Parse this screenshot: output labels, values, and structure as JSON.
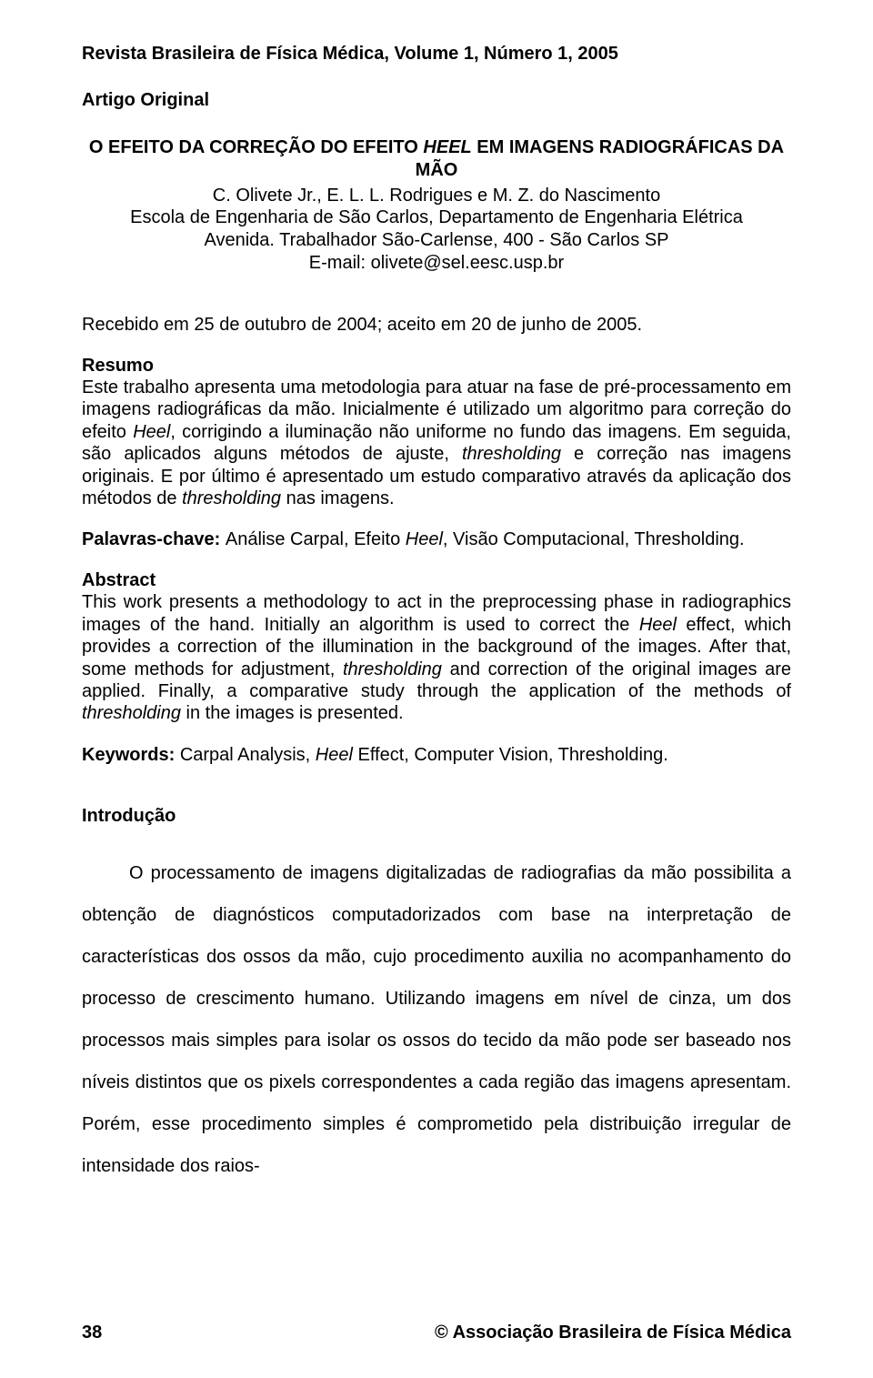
{
  "journal_header": "Revista Brasileira de Física Médica, Volume 1, Número 1, 2005",
  "article_type": "Artigo Original",
  "title": {
    "pre": "O EFEITO DA CORREÇÃO DO EFEITO ",
    "italic": "HEEL",
    "post": " EM IMAGENS RADIOGRÁFICAS DA",
    "line2": "MÃO"
  },
  "authors": "C. Olivete Jr., E. L. L. Rodrigues e M. Z. do Nascimento",
  "affiliation": {
    "l1": "Escola de Engenharia de São Carlos, Departamento de Engenharia Elétrica",
    "l2": "Avenida. Trabalhador São-Carlense, 400 - São Carlos SP",
    "l3": "E-mail: olivete@sel.eesc.usp.br"
  },
  "received": "Recebido em 25 de outubro de 2004; aceito em 20 de junho de 2005.",
  "resumo": {
    "head": "Resumo",
    "p1a": "Este trabalho apresenta uma metodologia para atuar na fase de pré-processamento em imagens radiográficas da mão. Inicialmente é utilizado um algoritmo para correção do efeito ",
    "p1b_it": "Heel",
    "p1c": ", corrigindo a iluminação não uniforme no fundo das imagens. Em seguida, são aplicados alguns métodos de ajuste, ",
    "p1d_it": "thresholding",
    "p1e": " e correção nas imagens originais. E por último é apresentado um estudo comparativo através da aplicação dos métodos de ",
    "p1f_it": "thresholding",
    "p1g": " nas imagens."
  },
  "palavras": {
    "label": "Palavras-chave: ",
    "a": "Análise Carpal, Efeito ",
    "b_it": "Heel",
    "c": ", Visão Computacional, Thresholding."
  },
  "abstract": {
    "head": "Abstract",
    "p1a": "This work presents a methodology to act in the preprocessing phase in radiographics images of the hand. Initially an algorithm is used to correct the ",
    "p1b_it": "Heel",
    "p1c": " effect, which provides a correction of the illumination in the background of the images. After that, some methods for adjustment, ",
    "p1d_it": "thresholding",
    "p1e": " and correction of the original images are applied. Finally, a comparative study through the application of the methods of ",
    "p1f_it": "thresholding",
    "p1g": " in the images is presented."
  },
  "keywords": {
    "label": "Keywords: ",
    "a": "Carpal Analysis, ",
    "b_it": "Heel",
    "c": " Effect, Computer Vision, Thresholding."
  },
  "intro": {
    "head": "Introdução",
    "body": "O processamento de imagens digitalizadas de radiografias da mão possibilita a obtenção de diagnósticos computadorizados com base na interpretação de características dos ossos da mão, cujo procedimento auxilia no acompanhamento do processo de crescimento humano. Utilizando imagens em nível de cinza, um dos processos mais simples para isolar os ossos do tecido da mão pode ser baseado nos níveis distintos que os pixels correspondentes a cada região das imagens apresentam. Porém, esse procedimento simples é comprometido pela distribuição irregular de intensidade dos raios-"
  },
  "footer": {
    "page": "38",
    "org": "© Associação Brasileira de Física Médica"
  }
}
